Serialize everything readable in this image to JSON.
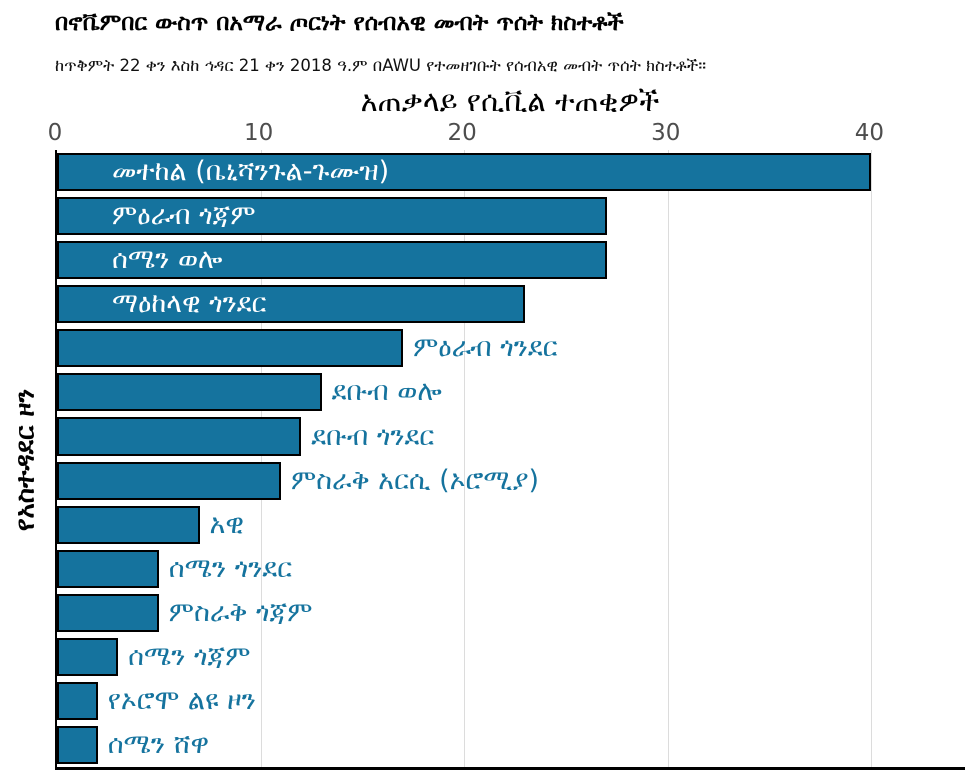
{
  "header": {
    "title": "በኖቬምበር ውስጥ በአማራ ጦርነት የሰብአዊ መብት ጥሰት ክስተቶች",
    "subtitle": "ከጥቅምት 22 ቀን እስከ ኅዳር 21 ቀን 2018 ዓ.ም በAWU የተመዘገቡት የሰብአዊ መብት ጥሰት ክስተቶች።"
  },
  "chart_data": {
    "type": "bar",
    "orientation": "horizontal",
    "title": "አጠቃላይ የሲቪል ተጠቂዎች",
    "xlabel": "",
    "ylabel": "የአስተዳደር ዞን",
    "xlim": [
      0,
      44.6
    ],
    "xticks": [
      0,
      10,
      20,
      30,
      40
    ],
    "grid": true,
    "legend": "none",
    "bar_color": "#15739e",
    "bar_edge_color": "#000000",
    "inside_label_color": "#ffffff",
    "outside_label_color": "#15739e",
    "categories": [
      "መተከል (ቤኒሻንጉል-ጉሙዝ)",
      "ምዕራብ ጎጃም",
      "ሰሜን ወሎ",
      "ማዕከላዊ ጎንደር",
      "ምዕራብ ጎንደር",
      "ደቡብ ወሎ",
      "ደቡብ ጎንደር",
      "ምስራቅ አርሲ (ኦሮሚያ)",
      "አዊ",
      "ሰሜን ጎንደር",
      "ምስራቅ ጎጃም",
      "ሰሜን ጎጃም",
      "የኦሮሞ ልዩ ዞን",
      "ሰሜን ሸዋ"
    ],
    "values": [
      40,
      27,
      27,
      23,
      17,
      13,
      12,
      11,
      7,
      5,
      5,
      3,
      2,
      2
    ],
    "label_inside": [
      true,
      true,
      true,
      true,
      false,
      false,
      false,
      false,
      false,
      false,
      false,
      false,
      false,
      false
    ]
  }
}
